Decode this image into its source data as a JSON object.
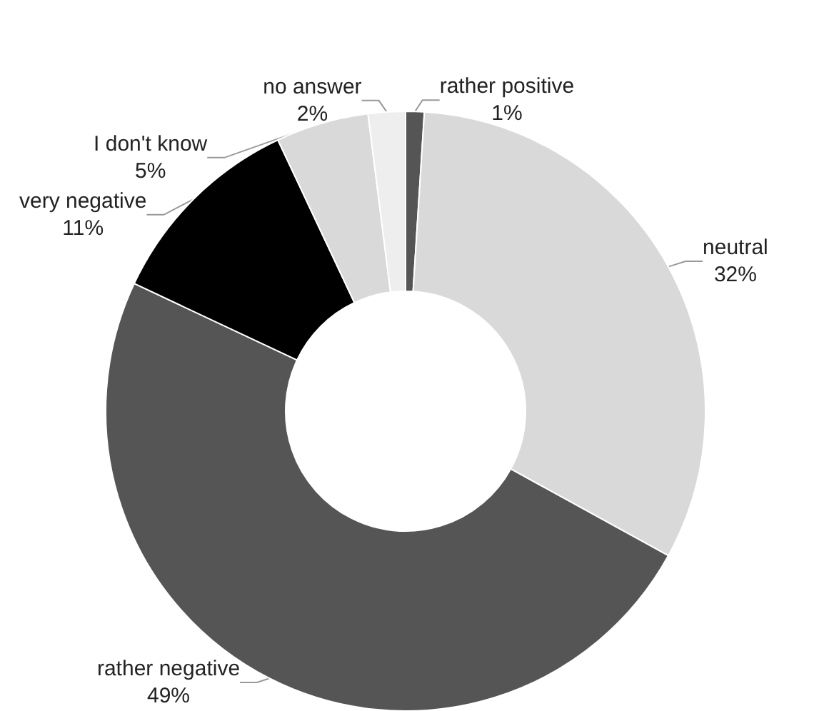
{
  "chart_data": {
    "type": "donut",
    "categories": [
      "rather positive",
      "neutral",
      "rather negative",
      "very negative",
      "I don't know",
      "no answer"
    ],
    "values": [
      1,
      32,
      49,
      11,
      5,
      2
    ],
    "value_labels": [
      "1%",
      "32%",
      "49%",
      "11%",
      "5%",
      "2%"
    ],
    "colors": [
      "#555555",
      "#d9d9d9",
      "#555555",
      "#000000",
      "#d9d9d9",
      "#eeeeee"
    ],
    "legend": false
  }
}
